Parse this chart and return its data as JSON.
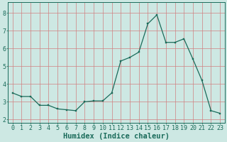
{
  "x": [
    0,
    1,
    2,
    3,
    4,
    5,
    6,
    7,
    8,
    9,
    10,
    11,
    12,
    13,
    14,
    15,
    16,
    17,
    18,
    19,
    20,
    21,
    22,
    23
  ],
  "y": [
    3.5,
    3.3,
    3.3,
    2.8,
    2.8,
    2.6,
    2.55,
    2.5,
    3.0,
    3.05,
    3.05,
    3.5,
    5.3,
    5.5,
    5.8,
    7.4,
    7.9,
    6.35,
    6.35,
    6.55,
    5.4,
    4.2,
    2.5,
    2.35
  ],
  "xlabel": "Humidex (Indice chaleur)",
  "xlim": [
    -0.5,
    23.5
  ],
  "ylim": [
    1.8,
    8.6
  ],
  "yticks": [
    2,
    3,
    4,
    5,
    6,
    7,
    8
  ],
  "xticks": [
    0,
    1,
    2,
    3,
    4,
    5,
    6,
    7,
    8,
    9,
    10,
    11,
    12,
    13,
    14,
    15,
    16,
    17,
    18,
    19,
    20,
    21,
    22,
    23
  ],
  "line_color": "#1a6b5a",
  "marker_color": "#1a6b5a",
  "bg_color": "#cde8e3",
  "grid_color_h": "#d08080",
  "grid_color_v": "#d08080",
  "axis_color": "#1a6b5a",
  "tick_label_color": "#1a6b5a",
  "xlabel_color": "#1a6b5a",
  "tick_fontsize": 6.0,
  "xlabel_fontsize": 7.5
}
